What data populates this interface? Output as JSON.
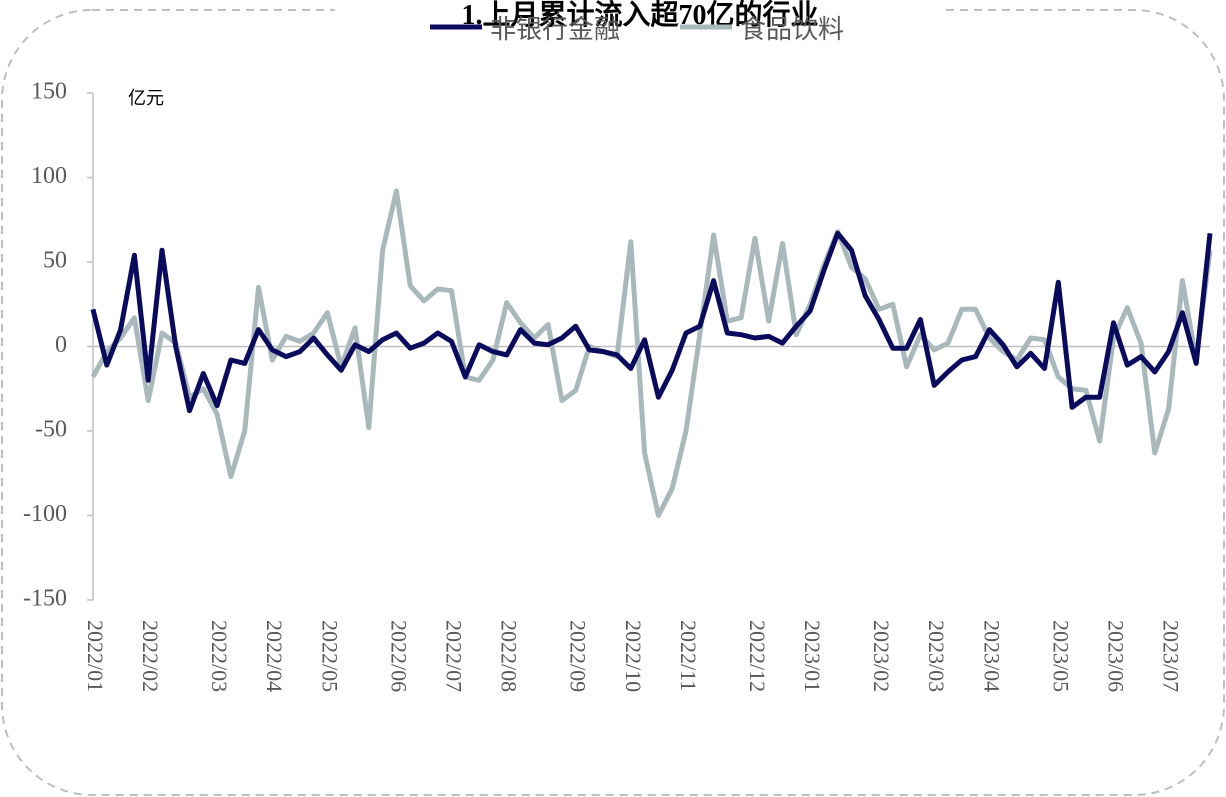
{
  "chart_data": {
    "type": "line",
    "title": "1.上月累计流入超70亿的行业",
    "y_unit": "亿元",
    "categories": [
      "2022/01",
      null,
      null,
      null,
      "2022/02",
      null,
      null,
      null,
      null,
      "2022/03",
      null,
      null,
      null,
      "2022/04",
      null,
      null,
      null,
      "2022/05",
      null,
      null,
      null,
      null,
      "2022/06",
      null,
      null,
      null,
      "2022/07",
      null,
      null,
      null,
      "2022/08",
      null,
      null,
      null,
      null,
      "2022/09",
      null,
      null,
      null,
      "2022/10",
      null,
      null,
      null,
      "2022/11",
      null,
      null,
      null,
      null,
      "2022/12",
      null,
      null,
      null,
      "2023/01",
      null,
      null,
      null,
      null,
      "2023/02",
      null,
      null,
      null,
      "2023/03",
      null,
      null,
      null,
      "2023/04",
      null,
      null,
      null,
      null,
      "2023/05",
      null,
      null,
      null,
      "2023/06",
      null,
      null,
      null,
      "2023/07",
      null,
      null,
      null
    ],
    "series": [
      {
        "name": "非银行金融",
        "color": "#0b0b5e",
        "values": [
          22,
          -11,
          10,
          54,
          -20,
          57,
          0,
          -38,
          -16,
          -35,
          -8,
          -10,
          10,
          -2,
          -6,
          -3,
          5,
          -5,
          -14,
          1,
          -3,
          4,
          8,
          -1,
          2,
          8,
          3,
          -18,
          1,
          -3,
          -5,
          10,
          2,
          1,
          5,
          12,
          -2,
          -3,
          -5,
          -13,
          4,
          -30,
          -14,
          8,
          12,
          39,
          8,
          7,
          5,
          6,
          2,
          12,
          21,
          45,
          67,
          57,
          30,
          16,
          -1,
          -1,
          16,
          -23,
          -15,
          -8,
          -6,
          10,
          1,
          -12,
          -4,
          -13,
          38,
          -36,
          -30,
          -30,
          14,
          -11,
          -6,
          -15,
          -3,
          20,
          -10,
          67
        ]
      },
      {
        "name": "食品饮料",
        "color": "#a9b8bb",
        "values": [
          -18,
          -3,
          5,
          17,
          -32,
          8,
          2,
          -30,
          -25,
          -40,
          -77,
          -50,
          35,
          -8,
          6,
          3,
          8,
          20,
          -12,
          11,
          -48,
          57,
          92,
          36,
          27,
          34,
          33,
          -18,
          -20,
          -8,
          26,
          14,
          5,
          13,
          -32,
          -26,
          0,
          -3,
          -6,
          62,
          -63,
          -100,
          -84,
          -50,
          7,
          66,
          15,
          17,
          64,
          15,
          61,
          7,
          25,
          48,
          68,
          47,
          40,
          22,
          25,
          -12,
          7,
          -2,
          2,
          22,
          22,
          5,
          -3,
          -8,
          5,
          4,
          -18,
          -25,
          -26,
          -56,
          5,
          23,
          2,
          -63,
          -37,
          39,
          -8,
          57
        ]
      }
    ],
    "ylim": [
      -150,
      150
    ],
    "yticks": [
      -150,
      -100,
      -50,
      0,
      50,
      100,
      150
    ]
  }
}
